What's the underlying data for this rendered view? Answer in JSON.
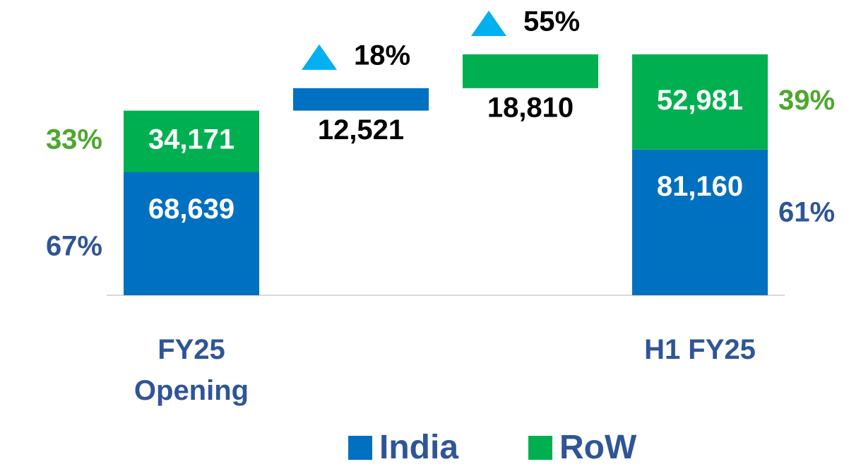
{
  "chart_data": {
    "type": "waterfall",
    "categories": [
      "FY25 Opening",
      null,
      null,
      "H1 FY25"
    ],
    "series": [
      {
        "name": "India",
        "color": "#0070c0",
        "share_color": "#2f5597",
        "values": [
          68639,
          12521,
          null,
          81160
        ],
        "value_labels": [
          "68,639",
          "12,521",
          null,
          "81,160"
        ],
        "share_labels": [
          "67%",
          null,
          null,
          "61%"
        ],
        "growth_labels": [
          null,
          "18%",
          null,
          null
        ]
      },
      {
        "name": "RoW",
        "color": "#00b050",
        "share_color": "#4ea72e",
        "values": [
          34171,
          null,
          18810,
          52981
        ],
        "value_labels": [
          "34,171",
          null,
          "18,810",
          "52,981"
        ],
        "share_labels": [
          "33%",
          null,
          null,
          "39%"
        ],
        "growth_labels": [
          null,
          null,
          "55%",
          null
        ]
      }
    ],
    "growth_marker_color": "#00b0f0",
    "label_color": "#2f5597"
  }
}
